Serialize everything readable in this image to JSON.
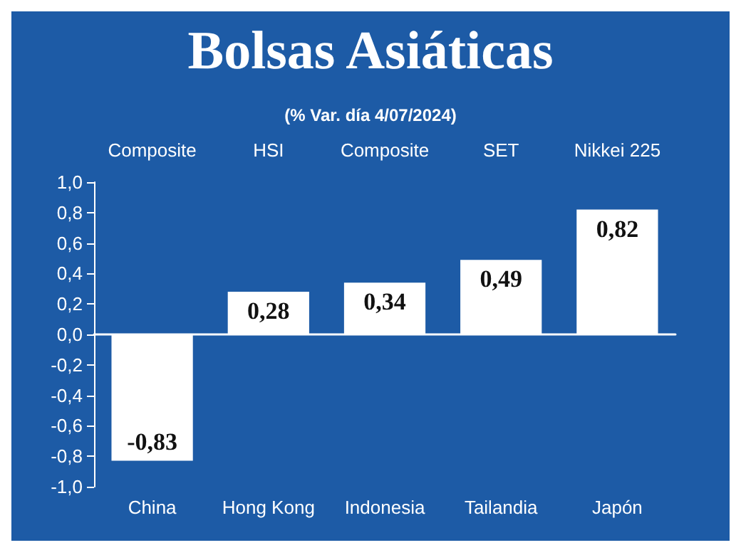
{
  "chart_data": {
    "type": "bar",
    "title": "Bolsas Asiáticas",
    "subtitle": "(% Var. día 4/07/2024)",
    "categories": [
      "China",
      "Hong Kong",
      "Indonesia",
      "Tailandia",
      "Japón"
    ],
    "values": [
      -0.83,
      0.28,
      0.34,
      0.49,
      0.82
    ],
    "value_labels": [
      "-0,83",
      "0,28",
      "0,34",
      "0,49",
      "0,82"
    ],
    "color": "#ffffff",
    "ylim": [
      -1,
      1
    ],
    "yticks": [
      {
        "value": -1,
        "label": "-1,0"
      },
      {
        "value": -0.8,
        "label": "-0,8"
      },
      {
        "value": -0.6,
        "label": "-0,6"
      },
      {
        "value": -0.4,
        "label": "-0,4"
      },
      {
        "value": -0.2,
        "label": "-0,2"
      },
      {
        "value": 0,
        "label": "0,0"
      },
      {
        "value": 0.2,
        "label": "0,2"
      },
      {
        "value": 0.4,
        "label": "0,4"
      },
      {
        "value": 0.6,
        "label": "0,6"
      },
      {
        "value": 0.8,
        "label": "0,8"
      },
      {
        "value": 1,
        "label": "1,0"
      }
    ],
    "annotations": [
      "Composite",
      "HSI",
      "Composite",
      "SET",
      "Nikkei 225"
    ]
  }
}
